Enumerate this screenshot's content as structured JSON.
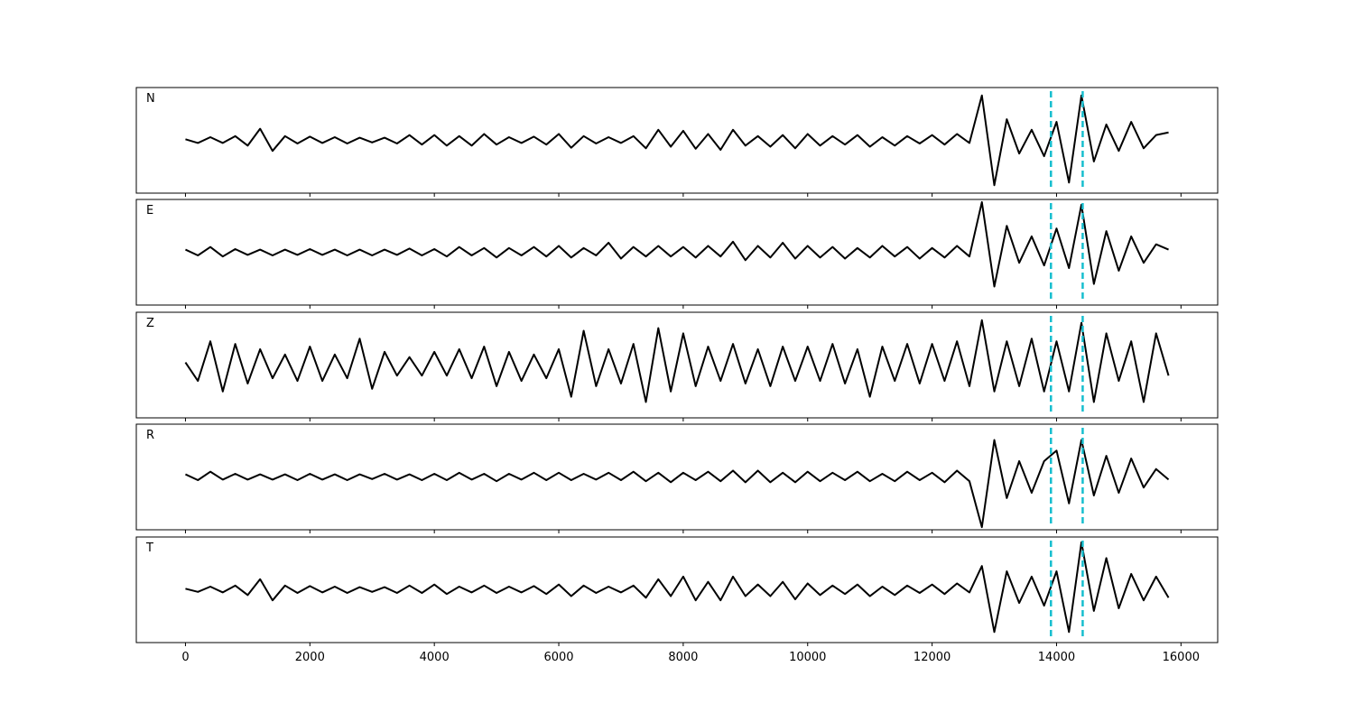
{
  "chart_data": {
    "type": "line",
    "layout": "stacked",
    "x": [
      0,
      200,
      400,
      600,
      800,
      1000,
      1200,
      1400,
      1600,
      1800,
      2000,
      2200,
      2400,
      2600,
      2800,
      3000,
      3200,
      3400,
      3600,
      3800,
      4000,
      4200,
      4400,
      4600,
      4800,
      5000,
      5200,
      5400,
      5600,
      5800,
      6000,
      6200,
      6400,
      6600,
      6800,
      7000,
      7200,
      7400,
      7600,
      7800,
      8000,
      8200,
      8400,
      8600,
      8800,
      9000,
      9200,
      9400,
      9600,
      9800,
      10000,
      10200,
      10400,
      10600,
      10800,
      11000,
      11200,
      11400,
      11600,
      11800,
      12000,
      12200,
      12400,
      12600,
      12800,
      13000,
      13200,
      13400,
      13600,
      13800,
      14000,
      14200,
      14400,
      14600,
      14800,
      15000,
      15200,
      15400,
      15600,
      15800
    ],
    "xlim": [
      -790,
      16590
    ],
    "xticks": [
      0,
      2000,
      4000,
      6000,
      8000,
      10000,
      12000,
      14000,
      16000
    ],
    "ylim": [
      -1,
      1
    ],
    "vlines": [
      13910,
      14420
    ],
    "vline_color": "#17becf",
    "series": [
      {
        "name": "N",
        "color": "#000000",
        "values": [
          0.02,
          -0.05,
          0.06,
          -0.05,
          0.08,
          -0.1,
          0.22,
          -0.2,
          0.08,
          -0.06,
          0.07,
          -0.05,
          0.06,
          -0.06,
          0.05,
          -0.04,
          0.05,
          -0.06,
          0.1,
          -0.08,
          0.1,
          -0.1,
          0.08,
          -0.1,
          0.12,
          -0.08,
          0.06,
          -0.05,
          0.07,
          -0.08,
          0.12,
          -0.14,
          0.08,
          -0.06,
          0.06,
          -0.05,
          0.08,
          -0.15,
          0.2,
          -0.12,
          0.18,
          -0.16,
          0.12,
          -0.18,
          0.2,
          -0.1,
          0.08,
          -0.12,
          0.1,
          -0.15,
          0.12,
          -0.1,
          0.08,
          -0.08,
          0.1,
          -0.12,
          0.06,
          -0.1,
          0.08,
          -0.06,
          0.1,
          -0.08,
          0.12,
          -0.05,
          0.85,
          -0.85,
          0.4,
          -0.25,
          0.2,
          -0.3,
          0.35,
          -0.8,
          0.85,
          -0.4,
          0.3,
          -0.2,
          0.35,
          -0.15,
          0.1,
          0.15
        ]
      },
      {
        "name": "E",
        "color": "#000000",
        "values": [
          0.05,
          -0.06,
          0.1,
          -0.08,
          0.06,
          -0.05,
          0.05,
          -0.06,
          0.05,
          -0.05,
          0.06,
          -0.05,
          0.05,
          -0.06,
          0.05,
          -0.06,
          0.05,
          -0.05,
          0.07,
          -0.06,
          0.06,
          -0.08,
          0.1,
          -0.06,
          0.08,
          -0.1,
          0.08,
          -0.06,
          0.1,
          -0.08,
          0.12,
          -0.1,
          0.08,
          -0.06,
          0.18,
          -0.12,
          0.1,
          -0.08,
          0.12,
          -0.08,
          0.1,
          -0.1,
          0.12,
          -0.08,
          0.2,
          -0.15,
          0.12,
          -0.1,
          0.18,
          -0.12,
          0.12,
          -0.1,
          0.1,
          -0.12,
          0.08,
          -0.1,
          0.12,
          -0.08,
          0.1,
          -0.12,
          0.08,
          -0.1,
          0.12,
          -0.08,
          0.95,
          -0.65,
          0.5,
          -0.2,
          0.3,
          -0.25,
          0.45,
          -0.3,
          0.9,
          -0.6,
          0.4,
          -0.35,
          0.3,
          -0.2,
          0.15,
          0.05
        ]
      },
      {
        "name": "Z",
        "color": "#000000",
        "values": [
          0.05,
          -0.3,
          0.45,
          -0.5,
          0.4,
          -0.35,
          0.3,
          -0.25,
          0.2,
          -0.3,
          0.35,
          -0.3,
          0.2,
          -0.25,
          0.5,
          -0.45,
          0.25,
          -0.2,
          0.15,
          -0.2,
          0.25,
          -0.2,
          0.3,
          -0.25,
          0.35,
          -0.4,
          0.25,
          -0.3,
          0.2,
          -0.25,
          0.3,
          -0.6,
          0.65,
          -0.4,
          0.3,
          -0.35,
          0.4,
          -0.7,
          0.7,
          -0.5,
          0.6,
          -0.4,
          0.35,
          -0.3,
          0.4,
          -0.35,
          0.3,
          -0.4,
          0.35,
          -0.3,
          0.35,
          -0.3,
          0.4,
          -0.35,
          0.3,
          -0.6,
          0.35,
          -0.3,
          0.4,
          -0.35,
          0.4,
          -0.3,
          0.45,
          -0.4,
          0.85,
          -0.5,
          0.45,
          -0.4,
          0.5,
          -0.5,
          0.45,
          -0.5,
          0.8,
          -0.7,
          0.6,
          -0.3,
          0.45,
          -0.7,
          0.6,
          -0.2
        ]
      },
      {
        "name": "R",
        "color": "#000000",
        "values": [
          0.05,
          -0.06,
          0.1,
          -0.05,
          0.06,
          -0.05,
          0.05,
          -0.05,
          0.05,
          -0.06,
          0.06,
          -0.05,
          0.05,
          -0.06,
          0.05,
          -0.04,
          0.06,
          -0.05,
          0.05,
          -0.06,
          0.06,
          -0.06,
          0.08,
          -0.05,
          0.06,
          -0.08,
          0.06,
          -0.05,
          0.08,
          -0.06,
          0.08,
          -0.06,
          0.06,
          -0.05,
          0.08,
          -0.06,
          0.1,
          -0.08,
          0.08,
          -0.1,
          0.08,
          -0.06,
          0.1,
          -0.08,
          0.12,
          -0.1,
          0.12,
          -0.1,
          0.08,
          -0.1,
          0.1,
          -0.08,
          0.08,
          -0.06,
          0.1,
          -0.08,
          0.06,
          -0.08,
          0.1,
          -0.06,
          0.08,
          -0.1,
          0.12,
          -0.08,
          -0.95,
          0.7,
          -0.4,
          0.3,
          -0.3,
          0.3,
          0.5,
          -0.5,
          0.7,
          -0.35,
          0.4,
          -0.3,
          0.35,
          -0.2,
          0.15,
          -0.05
        ]
      },
      {
        "name": "T",
        "color": "#000000",
        "values": [
          0.02,
          -0.04,
          0.06,
          -0.05,
          0.08,
          -0.1,
          0.2,
          -0.2,
          0.08,
          -0.06,
          0.07,
          -0.05,
          0.06,
          -0.06,
          0.05,
          -0.04,
          0.05,
          -0.06,
          0.08,
          -0.06,
          0.1,
          -0.08,
          0.06,
          -0.05,
          0.08,
          -0.06,
          0.06,
          -0.05,
          0.07,
          -0.08,
          0.1,
          -0.12,
          0.08,
          -0.06,
          0.06,
          -0.05,
          0.08,
          -0.15,
          0.2,
          -0.12,
          0.25,
          -0.2,
          0.15,
          -0.2,
          0.25,
          -0.12,
          0.1,
          -0.12,
          0.15,
          -0.18,
          0.12,
          -0.1,
          0.08,
          -0.08,
          0.1,
          -0.12,
          0.06,
          -0.1,
          0.08,
          -0.06,
          0.1,
          -0.08,
          0.12,
          -0.05,
          0.45,
          -0.8,
          0.35,
          -0.25,
          0.25,
          -0.3,
          0.35,
          -0.8,
          0.9,
          -0.4,
          0.6,
          -0.35,
          0.3,
          -0.2,
          0.25,
          -0.15
        ]
      }
    ]
  }
}
